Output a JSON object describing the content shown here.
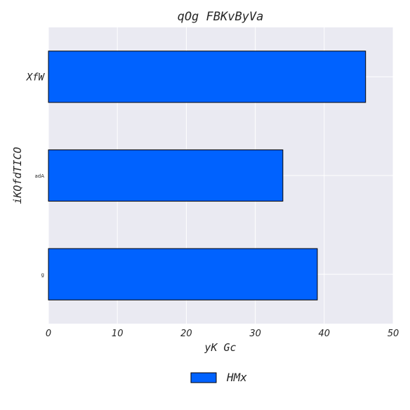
{
  "chart_data": {
    "type": "bar",
    "orientation": "horizontal",
    "title": "qOg FBKvByVa",
    "xlabel": "yK Gc",
    "ylabel": "iKQfdTICO",
    "categories": [
      "XfW",
      "adA",
      "g"
    ],
    "series": [
      {
        "name": "HMx",
        "values": [
          46,
          34,
          39
        ],
        "color": "#0062ff"
      }
    ],
    "xlim": [
      0,
      50
    ],
    "xticks": [
      0,
      10,
      20,
      30,
      40,
      50
    ],
    "grid": true,
    "legend_position": "bottom-center",
    "background_color": "#eaeaf2"
  }
}
